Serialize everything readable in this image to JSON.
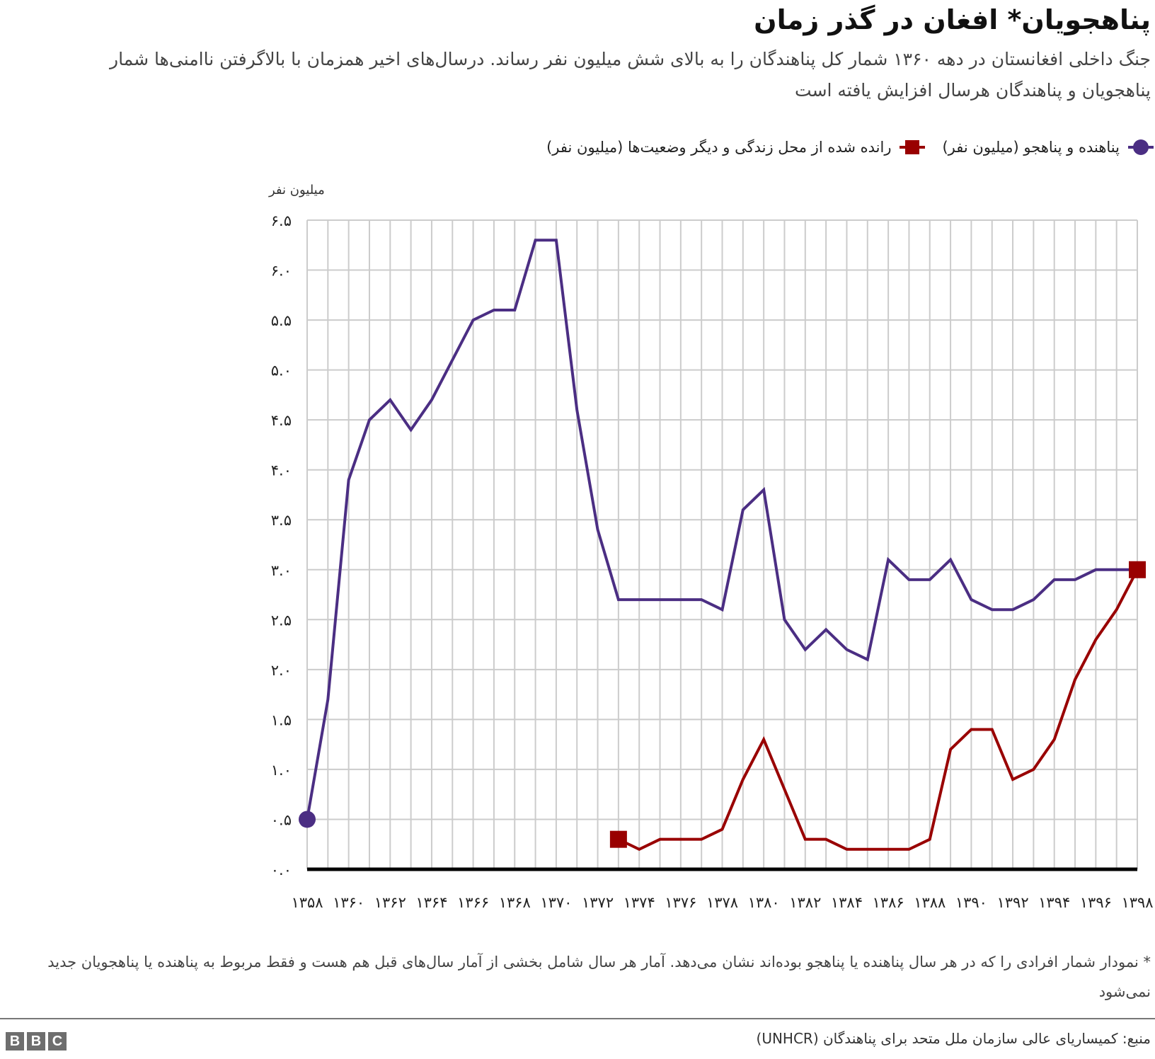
{
  "header": {
    "title": "پناهجویان* افغان در گذر زمان",
    "subtitle": "جنگ داخلی افغانستان در دهه ۱۳۶۰ شمار کل پناهندگان را به بالای شش میلیون نفر رساند. درسال‌های اخیر همزمان با بالاگرفتن ناامنی‌ها شمار پناهجویان و پناهندگان هرسال افزایش یافته است"
  },
  "legend": {
    "items": [
      {
        "label": "پناهنده و پناهجو (میلیون نفر)",
        "marker": "circle",
        "color": "#4b2e83"
      },
      {
        "label": "رانده شده از محل زندگی و دیگر وضعیت‌ها (میلیون نفر)",
        "marker": "square",
        "color": "#990000"
      }
    ]
  },
  "axis": {
    "y_unit_label": "میلیون نفر",
    "y_ticks": [
      "۰.۰",
      "۰.۵",
      "۱.۰",
      "۱.۵",
      "۲.۰",
      "۲.۵",
      "۳.۰",
      "۳.۵",
      "۴.۰",
      "۴.۵",
      "۵.۰",
      "۵.۵",
      "۶.۰",
      "۶.۵"
    ],
    "x_ticks": [
      "۱۳۵۸",
      "۱۳۶۰",
      "۱۳۶۲",
      "۱۳۶۴",
      "۱۳۶۶",
      "۱۳۶۸",
      "۱۳۷۰",
      "۱۳۷۲",
      "۱۳۷۴",
      "۱۳۷۶",
      "۱۳۷۸",
      "۱۳۸۰",
      "۱۳۸۲",
      "۱۳۸۴",
      "۱۳۸۶",
      "۱۳۸۸",
      "۱۳۹۰",
      "۱۳۹۲",
      "۱۳۹۴",
      "۱۳۹۶",
      "۱۳۹۸"
    ]
  },
  "footnote": "* نمودار شمار افرادی را که در هر سال پناهنده یا پناهجو بوده‌اند نشان می‌دهد. آمار هر سال شامل بخشی از آمار سال‌های قبل هم هست و فقط مربوط به پناهنده یا پناهجویان جدید نمی‌شود",
  "source": "منبع: کمیساریای عالی سازمان ملل متحد برای پناهندگان (UNHCR)",
  "brand": {
    "letters": [
      "B",
      "B",
      "C"
    ]
  },
  "colors": {
    "refugees": "#4b2e83",
    "displaced": "#990000",
    "grid": "#cccccc",
    "axis": "#000000"
  },
  "chart_data": {
    "type": "line",
    "title": "پناهجویان* افغان در گذر زمان",
    "xlabel": "",
    "ylabel": "میلیون نفر",
    "ylim": [
      0,
      6.5
    ],
    "grid": true,
    "legend_position": "top",
    "x": [
      1358,
      1359,
      1360,
      1361,
      1362,
      1363,
      1364,
      1365,
      1366,
      1367,
      1368,
      1369,
      1370,
      1371,
      1372,
      1373,
      1374,
      1375,
      1376,
      1377,
      1378,
      1379,
      1380,
      1381,
      1382,
      1383,
      1384,
      1385,
      1386,
      1387,
      1388,
      1389,
      1390,
      1391,
      1392,
      1393,
      1394,
      1395,
      1396,
      1397,
      1398
    ],
    "series": [
      {
        "name": "پناهنده و پناهجو (میلیون نفر)",
        "color": "#4b2e83",
        "values": [
          0.5,
          1.7,
          3.9,
          4.5,
          4.7,
          4.4,
          4.7,
          5.1,
          5.5,
          5.6,
          5.6,
          6.3,
          6.3,
          4.6,
          3.4,
          2.7,
          2.7,
          2.7,
          2.7,
          2.7,
          2.6,
          3.6,
          3.8,
          2.5,
          2.2,
          2.4,
          2.2,
          2.1,
          3.1,
          2.9,
          2.9,
          3.1,
          2.7,
          2.6,
          2.6,
          2.7,
          2.9,
          2.9,
          3.0,
          3.0,
          3.0
        ]
      },
      {
        "name": "رانده شده از محل زندگی و دیگر وضعیت‌ها (میلیون نفر)",
        "color": "#990000",
        "values": [
          null,
          null,
          null,
          null,
          null,
          null,
          null,
          null,
          null,
          null,
          null,
          null,
          null,
          null,
          null,
          0.3,
          0.2,
          0.3,
          0.3,
          0.3,
          0.4,
          0.9,
          1.3,
          0.8,
          0.3,
          0.3,
          0.2,
          0.2,
          0.2,
          0.2,
          0.3,
          1.2,
          1.4,
          1.4,
          0.9,
          1.0,
          1.3,
          1.9,
          2.3,
          2.6,
          3.0
        ]
      }
    ]
  }
}
